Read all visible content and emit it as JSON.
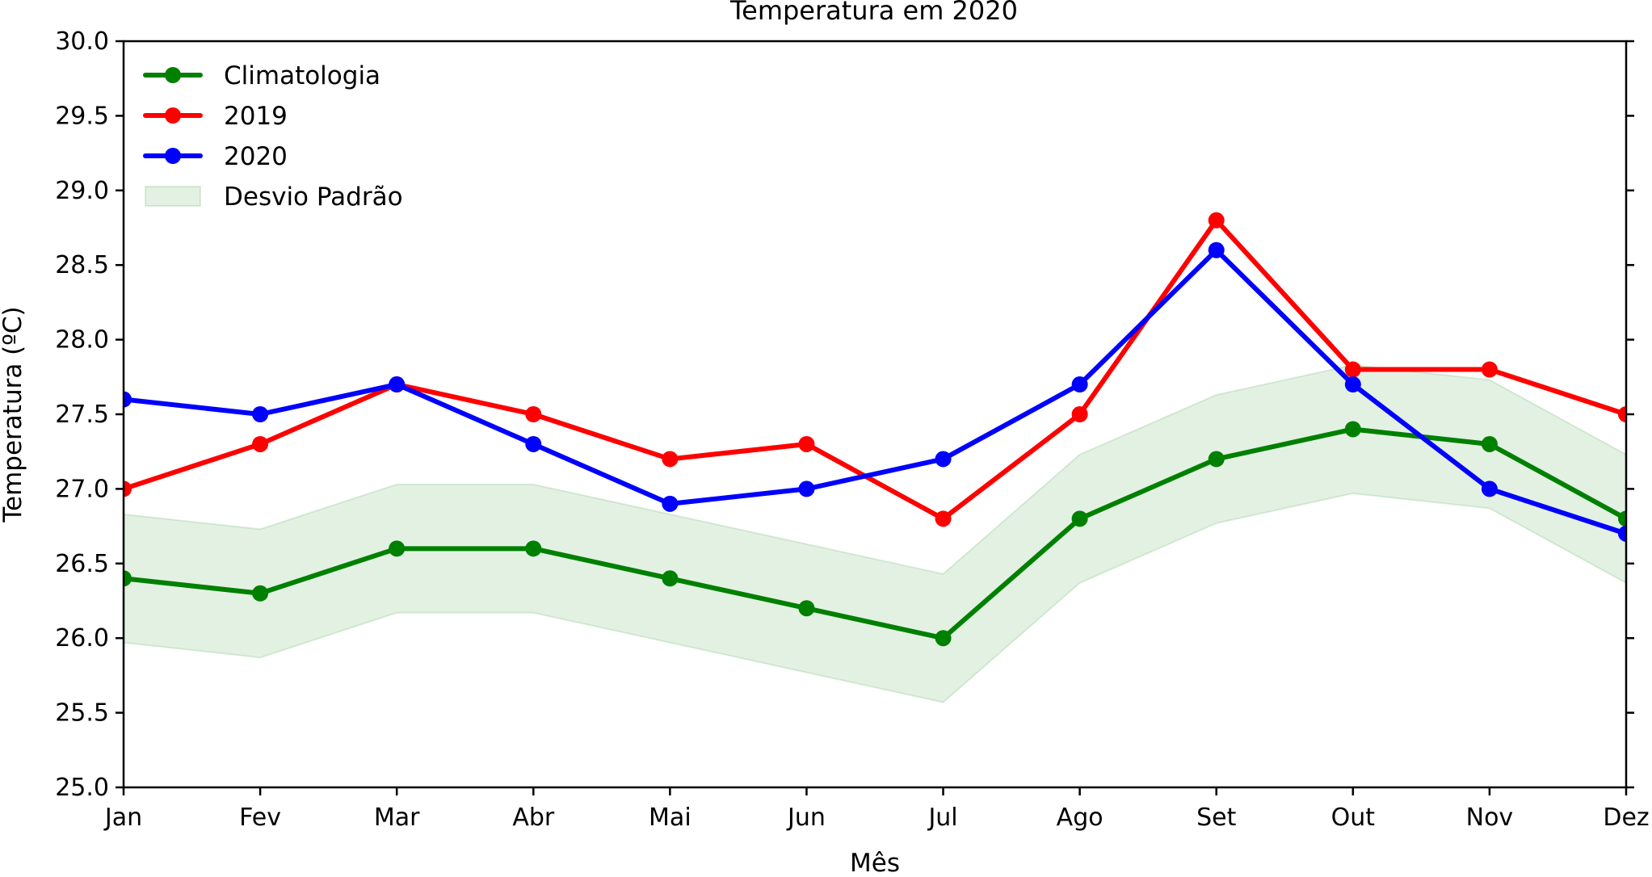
{
  "chart_data": {
    "type": "line",
    "title": "Temperatura em 2020",
    "xlabel": "Mês",
    "ylabel": "Temperatura (ºC)",
    "categories": [
      "Jan",
      "Fev",
      "Mar",
      "Abr",
      "Mai",
      "Jun",
      "Jul",
      "Ago",
      "Set",
      "Out",
      "Nov",
      "Dez"
    ],
    "ylim": [
      25.0,
      30.0
    ],
    "yticks": [
      "25.0",
      "25.5",
      "26.0",
      "26.5",
      "27.0",
      "27.5",
      "28.0",
      "28.5",
      "29.0",
      "29.5",
      "30.0"
    ],
    "grid": false,
    "legend_position": "top-left",
    "series": [
      {
        "name": "Climatologia",
        "color": "#008000",
        "values": [
          26.4,
          26.3,
          26.6,
          26.6,
          26.4,
          26.2,
          26.0,
          26.8,
          27.2,
          27.4,
          27.3,
          26.8
        ]
      },
      {
        "name": "2019",
        "color": "#ff0000",
        "values": [
          27.0,
          27.3,
          27.7,
          27.5,
          27.2,
          27.3,
          26.8,
          27.5,
          28.8,
          27.8,
          27.8,
          27.5
        ]
      },
      {
        "name": "2020",
        "color": "#0000ff",
        "values": [
          27.6,
          27.5,
          27.7,
          27.3,
          26.9,
          27.0,
          27.2,
          27.7,
          28.6,
          27.7,
          27.0,
          26.7
        ]
      }
    ],
    "band": {
      "name": "Desvio Padrão",
      "color": "#008000",
      "center_series": "Climatologia",
      "half_width": 0.43
    }
  }
}
